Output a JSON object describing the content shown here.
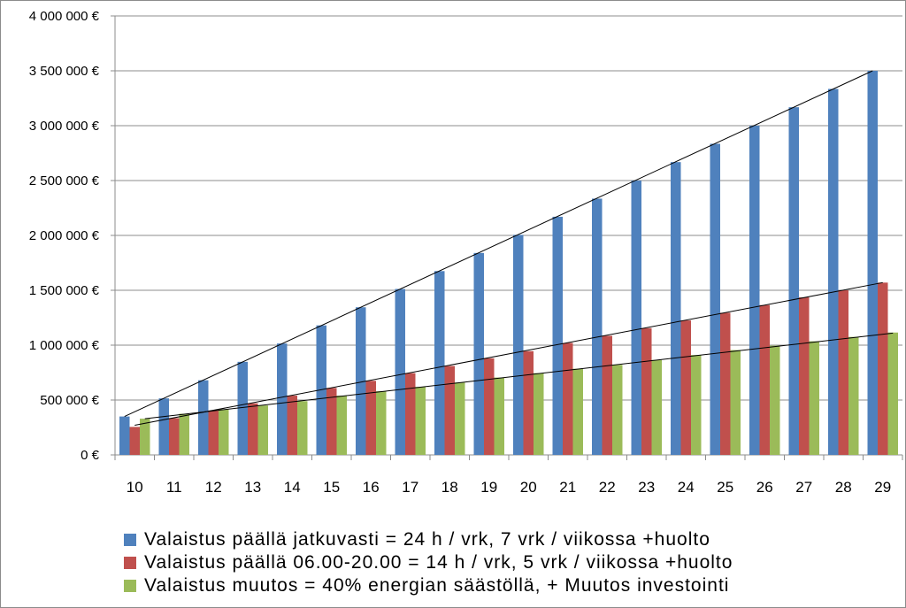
{
  "chart_data": {
    "type": "bar",
    "title": "",
    "xlabel": "",
    "ylabel": "",
    "categories": [
      "10",
      "11",
      "12",
      "13",
      "14",
      "15",
      "16",
      "17",
      "18",
      "19",
      "20",
      "21",
      "22",
      "23",
      "24",
      "25",
      "26",
      "27",
      "28",
      "29"
    ],
    "series": [
      {
        "name": "Valaistus päällä jatkuvasti = 24 h / vrk, 7 vrk / viikossa +huolto",
        "color": "#4f81bd",
        "values": [
          350000,
          515000,
          680000,
          848000,
          1015000,
          1180000,
          1345000,
          1512000,
          1675000,
          1840000,
          2005000,
          2170000,
          2335000,
          2500000,
          2668000,
          2835000,
          3000000,
          3168000,
          3335000,
          3500000
        ]
      },
      {
        "name": "Valaistus päällä 06.00-20.00 = 14 h / vrk, 5 vrk / viikossa +huolto",
        "color": "#c0504d",
        "values": [
          255000,
          335000,
          405000,
          470000,
          540000,
          610000,
          675000,
          745000,
          810000,
          880000,
          945000,
          1020000,
          1085000,
          1155000,
          1225000,
          1295000,
          1365000,
          1435000,
          1500000,
          1570000
        ]
      },
      {
        "name": "Valaistus muutos = 40% energian säästöllä, + Muutos investointi",
        "color": "#9bbb59",
        "values": [
          330000,
          375000,
          415000,
          450000,
          490000,
          540000,
          580000,
          620000,
          660000,
          705000,
          745000,
          785000,
          820000,
          865000,
          910000,
          955000,
          995000,
          1035000,
          1075000,
          1115000
        ]
      }
    ],
    "trendlines": [
      {
        "series": 0,
        "from": 350000,
        "to": 3500000
      },
      {
        "series": 1,
        "from": 270000,
        "to": 1570000
      },
      {
        "series": 2,
        "from": 330000,
        "to": 1110000
      }
    ],
    "ylim": [
      0,
      4000000
    ],
    "yticks": [
      0,
      500000,
      1000000,
      1500000,
      2000000,
      2500000,
      3000000,
      3500000,
      4000000
    ],
    "ytick_labels": [
      "0 €",
      "500 000 €",
      "1 000 000 €",
      "1 500 000 €",
      "2 000 000 €",
      "2 500 000 €",
      "3 000 000 €",
      "3 500 000 €",
      "4 000 000 €"
    ],
    "grid": true,
    "legend_position": "bottom"
  }
}
